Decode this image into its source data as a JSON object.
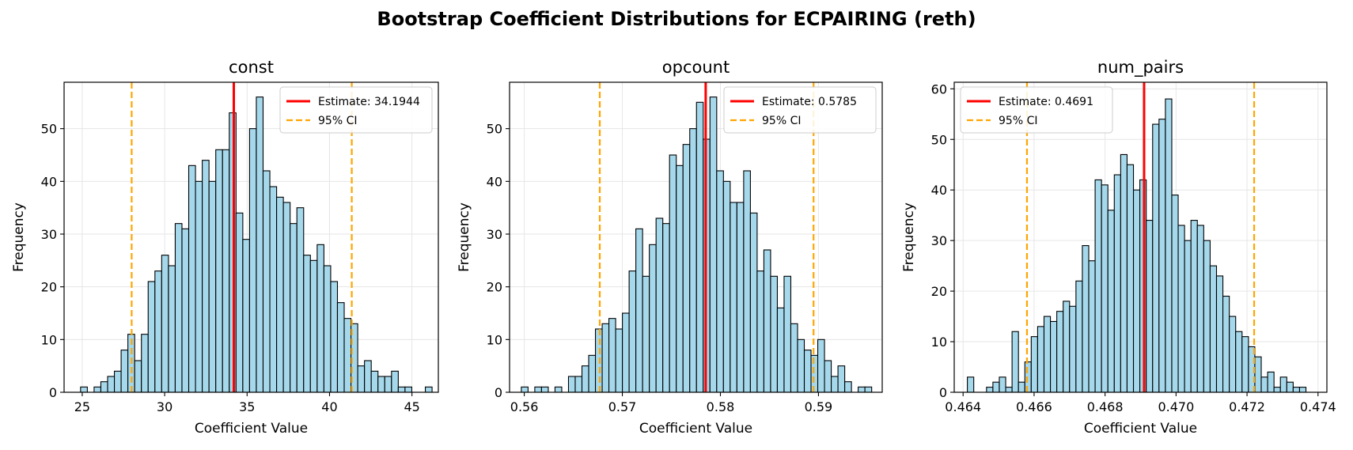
{
  "title": "Bootstrap Coefficient Distributions for ECPAIRING (reth)",
  "colors": {
    "bar_fill": "#a6d8ec",
    "bar_edge": "#000000",
    "estimate": "#ff0000",
    "ci": "#ffa500",
    "grid": "#e6e6e6"
  },
  "chart_data": [
    {
      "type": "bar",
      "title": "const",
      "xlabel": "Coefficient Value",
      "ylabel": "Frequency",
      "xlim": [
        23.9,
        46.6
      ],
      "ylim": [
        0,
        58.8
      ],
      "xticks": [
        25,
        30,
        35,
        40,
        45
      ],
      "xtick_labels": [
        "25",
        "30",
        "35",
        "40",
        "45"
      ],
      "yticks": [
        0,
        10,
        20,
        30,
        40,
        50
      ],
      "bin_start": 24.9,
      "bin_width": 0.41,
      "counts": [
        1,
        0,
        1,
        2,
        3,
        4,
        8,
        11,
        6,
        11,
        21,
        23,
        26,
        24,
        32,
        31,
        43,
        40,
        44,
        40,
        46,
        46,
        53,
        34,
        29,
        50,
        56,
        42,
        39,
        37,
        36,
        32,
        35,
        26,
        25,
        28,
        24,
        21,
        17,
        14,
        13,
        5,
        6,
        4,
        3,
        3,
        4,
        1,
        1,
        0,
        0,
        1
      ],
      "estimate": 34.1944,
      "estimate_label": "Estimate: 34.1944",
      "ci": [
        28.0,
        41.35
      ],
      "ci_label": "95% CI",
      "legend_loc": "upper right"
    },
    {
      "type": "bar",
      "title": "opcount",
      "xlabel": "Coefficient Value",
      "ylabel": "Frequency",
      "xlim": [
        0.5585,
        0.5965
      ],
      "ylim": [
        0,
        58.8
      ],
      "xticks": [
        0.56,
        0.57,
        0.58,
        0.59
      ],
      "xtick_labels": [
        "0.56",
        "0.57",
        "0.58",
        "0.59"
      ],
      "yticks": [
        0,
        10,
        20,
        30,
        40,
        50
      ],
      "bin_start": 0.5597,
      "bin_width": 0.000687,
      "counts": [
        1,
        0,
        1,
        1,
        0,
        1,
        0,
        3,
        3,
        5,
        7,
        12,
        13,
        14,
        12,
        15,
        23,
        31,
        22,
        28,
        33,
        32,
        45,
        43,
        47,
        50,
        55,
        48,
        56,
        42,
        40,
        36,
        36,
        42,
        34,
        23,
        27,
        22,
        16,
        22,
        13,
        10,
        8,
        7,
        10,
        6,
        3,
        5,
        2,
        0,
        1,
        1
      ],
      "estimate": 0.5785,
      "estimate_label": "Estimate: 0.5785",
      "ci": [
        0.5677,
        0.5895
      ],
      "ci_label": "95% CI",
      "legend_loc": "upper right"
    },
    {
      "type": "bar",
      "title": "num_pairs",
      "xlabel": "Coefficient Value",
      "ylabel": "Frequency",
      "xlim": [
        0.46375,
        0.47425
      ],
      "ylim": [
        0,
        61.3
      ],
      "xticks": [
        0.464,
        0.466,
        0.468,
        0.47,
        0.472,
        0.474
      ],
      "xtick_labels": [
        "0.464",
        "0.466",
        "0.468",
        "0.470",
        "0.472",
        "0.474"
      ],
      "yticks": [
        0,
        10,
        20,
        30,
        40,
        50,
        60
      ],
      "bin_start": 0.46412,
      "bin_width": 0.00018,
      "counts": [
        3,
        0,
        0,
        1,
        2,
        3,
        1,
        12,
        2,
        6,
        11,
        13,
        15,
        14,
        16,
        18,
        17,
        22,
        29,
        26,
        42,
        41,
        36,
        43,
        47,
        45,
        40,
        42,
        34,
        53,
        54,
        58,
        39,
        33,
        30,
        34,
        33,
        30,
        25,
        23,
        19,
        15,
        12,
        11,
        9,
        7,
        3,
        4,
        1,
        3,
        2,
        1,
        1
      ],
      "estimate": 0.4691,
      "estimate_label": "Estimate: 0.4691",
      "ci": [
        0.4658,
        0.4722
      ],
      "ci_label": "95% CI",
      "legend_loc": "upper left"
    }
  ]
}
